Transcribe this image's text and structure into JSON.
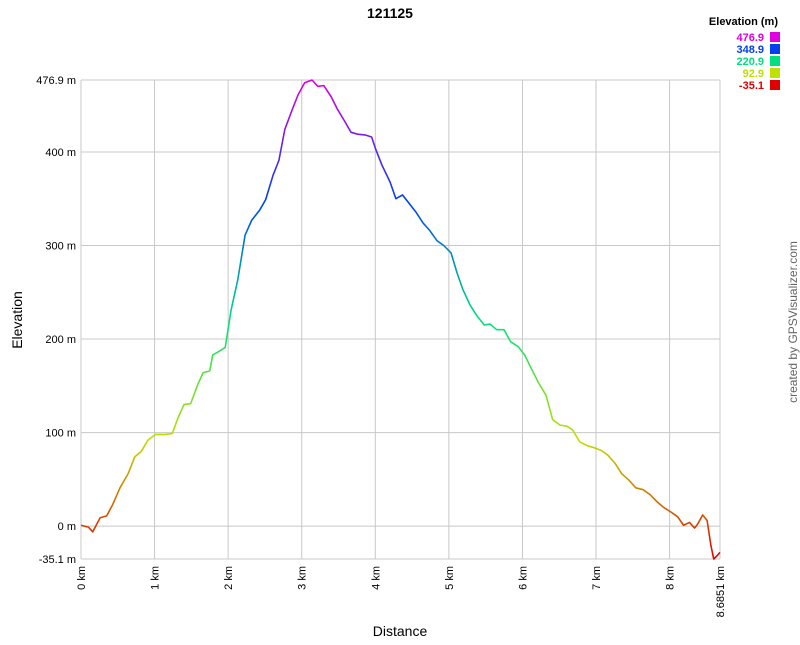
{
  "chart_data": {
    "type": "line",
    "title": "121125",
    "x_label": "Distance",
    "y_label": "Elevation",
    "credit": "created by GPSVisualizer.com",
    "grid": true,
    "legend": {
      "title": "Elevation (m)",
      "position": "top-right",
      "items": [
        {
          "value": 476.9,
          "color": "#e000e0"
        },
        {
          "value": 348.9,
          "color": "#0040f0"
        },
        {
          "value": 220.9,
          "color": "#00e080"
        },
        {
          "value": 92.9,
          "color": "#c0e000"
        },
        {
          "value": -35.1,
          "color": "#e00000"
        }
      ]
    },
    "xlim": [
      0,
      8.6851
    ],
    "xticks": [
      {
        "value": 0,
        "label": "0 km"
      },
      {
        "value": 1,
        "label": "1 km"
      },
      {
        "value": 2,
        "label": "2 km"
      },
      {
        "value": 3,
        "label": "3 km"
      },
      {
        "value": 4,
        "label": "4 km"
      },
      {
        "value": 5,
        "label": "5 km"
      },
      {
        "value": 6,
        "label": "6 km"
      },
      {
        "value": 7,
        "label": "7 km"
      },
      {
        "value": 8,
        "label": "8 km"
      },
      {
        "value": 8.6851,
        "label": "8.6851 km"
      }
    ],
    "ylim": [
      -35.1,
      476.9
    ],
    "yticks": [
      {
        "value": -35.1,
        "label": "-35.1 m"
      },
      {
        "value": 0,
        "label": "0 m"
      },
      {
        "value": 100,
        "label": "100 m"
      },
      {
        "value": 200,
        "label": "200 m"
      },
      {
        "value": 300,
        "label": "300 m"
      },
      {
        "value": 400,
        "label": "400 m"
      },
      {
        "value": 476.9,
        "label": "476.9 m"
      }
    ],
    "x": [
      0,
      0.1,
      0.16,
      0.26,
      0.35,
      0.43,
      0.53,
      0.64,
      0.73,
      0.82,
      0.91,
      1.01,
      1.14,
      1.24,
      1.32,
      1.4,
      1.49,
      1.59,
      1.66,
      1.75,
      1.79,
      1.88,
      1.96,
      2.04,
      2.13,
      2.23,
      2.32,
      2.43,
      2.51,
      2.61,
      2.69,
      2.77,
      2.87,
      2.95,
      3.04,
      3.14,
      3.22,
      3.3,
      3.4,
      3.49,
      3.59,
      3.67,
      3.76,
      3.87,
      3.95,
      4.01,
      4.09,
      4.2,
      4.28,
      4.37,
      4.46,
      4.55,
      4.65,
      4.74,
      4.84,
      4.93,
      5.03,
      5.11,
      5.19,
      5.29,
      5.38,
      5.48,
      5.56,
      5.65,
      5.75,
      5.84,
      5.94,
      6.03,
      6.13,
      6.22,
      6.32,
      6.41,
      6.51,
      6.6,
      6.68,
      6.78,
      6.88,
      6.97,
      7.07,
      7.16,
      7.26,
      7.35,
      7.45,
      7.54,
      7.64,
      7.73,
      7.83,
      7.92,
      8.02,
      8.11,
      8.19,
      8.27,
      8.34,
      8.38,
      8.45,
      8.51,
      8.56,
      8.6,
      8.64,
      8.6851
    ],
    "values": [
      1,
      -1,
      -6,
      9,
      11,
      23,
      41,
      56,
      74,
      80,
      92,
      98,
      98,
      99,
      116,
      130,
      131,
      152,
      164,
      166,
      183,
      187,
      191,
      231,
      263,
      311,
      327,
      338,
      349,
      375,
      391,
      424,
      445,
      461,
      474,
      476.9,
      470,
      471,
      459,
      445,
      432,
      421,
      419,
      418,
      416,
      402,
      386,
      368,
      350,
      354,
      345,
      336,
      324,
      316,
      305,
      300,
      292,
      271,
      253,
      236,
      225,
      215,
      216,
      210,
      210,
      197,
      192,
      183,
      167,
      153,
      140,
      114,
      108,
      107,
      103,
      90,
      86,
      84,
      81,
      76,
      67,
      56,
      49,
      41,
      39,
      34,
      26,
      20,
      15,
      10,
      1,
      4,
      -2,
      2,
      12,
      6,
      -20,
      -35.1,
      -32,
      -28
    ]
  }
}
